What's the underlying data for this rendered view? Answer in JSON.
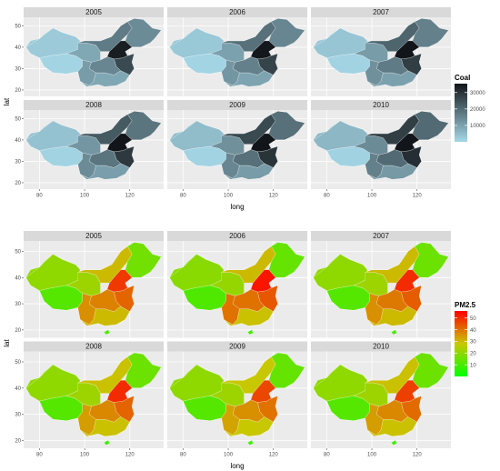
{
  "chart_data": [
    {
      "type": "heatmap",
      "subtype": "faceted choropleth map",
      "title": "",
      "xlabel": "long",
      "ylabel": "lat",
      "facets": [
        "2005",
        "2006",
        "2007",
        "2008",
        "2009",
        "2010"
      ],
      "facet_layout": "2 rows x 3 columns",
      "x_ticks": [
        80,
        100,
        120
      ],
      "y_ticks": [
        20,
        30,
        40,
        50
      ],
      "xlim": [
        73,
        135
      ],
      "ylim": [
        17,
        54
      ],
      "grid": true,
      "legend": {
        "title": "Coal",
        "placement": "right",
        "breaks": [
          10000,
          20000,
          30000
        ],
        "break_labels": [
          "10000",
          "20000",
          "30000"
        ],
        "low_color": "#a6d8e8",
        "high_color": "#12161a"
      },
      "region_values_by_facet": {
        "2005": {
          "west": 2500,
          "tibet": 800,
          "southwest": 11000,
          "northwest": 9000,
          "north": 17000,
          "northeast": 14000,
          "east": 26000,
          "south": 9000,
          "central": 15000,
          "core": 34000
        },
        "2006": {
          "west": 3000,
          "tibet": 800,
          "southwest": 12000,
          "northwest": 10000,
          "north": 19000,
          "northeast": 15000,
          "east": 27000,
          "south": 9500,
          "central": 16000,
          "core": 35000
        },
        "2007": {
          "west": 3500,
          "tibet": 900,
          "southwest": 13000,
          "northwest": 11000,
          "north": 21000,
          "northeast": 16000,
          "east": 28000,
          "south": 10000,
          "central": 17000,
          "core": 36000
        },
        "2008": {
          "west": 4000,
          "tibet": 1000,
          "southwest": 14000,
          "northwest": 12000,
          "north": 23000,
          "northeast": 18000,
          "east": 29000,
          "south": 10500,
          "central": 18000,
          "core": 37000
        },
        "2009": {
          "west": 5000,
          "tibet": 1000,
          "southwest": 15000,
          "northwest": 13000,
          "north": 26000,
          "northeast": 19000,
          "east": 30000,
          "south": 11000,
          "central": 19000,
          "core": 38000
        },
        "2010": {
          "west": 6000,
          "tibet": 1100,
          "southwest": 16000,
          "northwest": 14000,
          "north": 28000,
          "northeast": 20000,
          "east": 31000,
          "south": 11500,
          "central": 20000,
          "core": 39000
        }
      }
    },
    {
      "type": "heatmap",
      "subtype": "faceted choropleth map",
      "title": "",
      "xlabel": "long",
      "ylabel": "lat",
      "facets": [
        "2005",
        "2006",
        "2007",
        "2008",
        "2009",
        "2010"
      ],
      "facet_layout": "2 rows x 3 columns",
      "x_ticks": [
        80,
        100,
        120
      ],
      "y_ticks": [
        20,
        30,
        40,
        50
      ],
      "xlim": [
        73,
        135
      ],
      "ylim": [
        17,
        54
      ],
      "grid": true,
      "legend": {
        "title": "PM2.5",
        "placement": "right",
        "breaks": [
          10,
          20,
          30,
          40,
          50
        ],
        "break_labels": [
          "10",
          "20",
          "30",
          "40",
          "50"
        ],
        "low_color": "#00ff00",
        "high_color": "#ff0000"
      },
      "region_values_by_facet": {
        "2005": {
          "west": 20,
          "tibet": 12,
          "southwest": 36,
          "northwest": 22,
          "north": 30,
          "northeast": 16,
          "east": 42,
          "south": 30,
          "central": 38,
          "core": 48,
          "hainan": 10
        },
        "2006": {
          "west": 19,
          "tibet": 11,
          "southwest": 40,
          "northwest": 21,
          "north": 30,
          "northeast": 14,
          "east": 44,
          "south": 29,
          "central": 40,
          "core": 53,
          "hainan": 9
        },
        "2007": {
          "west": 20,
          "tibet": 12,
          "southwest": 36,
          "northwest": 22,
          "north": 30,
          "northeast": 15,
          "east": 43,
          "south": 30,
          "central": 39,
          "core": 50,
          "hainan": 10
        },
        "2008": {
          "west": 20,
          "tibet": 12,
          "southwest": 34,
          "northwest": 22,
          "north": 29,
          "northeast": 15,
          "east": 42,
          "south": 29,
          "central": 37,
          "core": 50,
          "hainan": 9
        },
        "2009": {
          "west": 20,
          "tibet": 12,
          "southwest": 33,
          "northwest": 22,
          "north": 28,
          "northeast": 14,
          "east": 40,
          "south": 28,
          "central": 36,
          "core": 46,
          "hainan": 9
        },
        "2010": {
          "west": 20,
          "tibet": 12,
          "southwest": 34,
          "northwest": 22,
          "north": 29,
          "northeast": 15,
          "east": 41,
          "south": 29,
          "central": 37,
          "core": 47,
          "hainan": 9
        }
      }
    }
  ]
}
